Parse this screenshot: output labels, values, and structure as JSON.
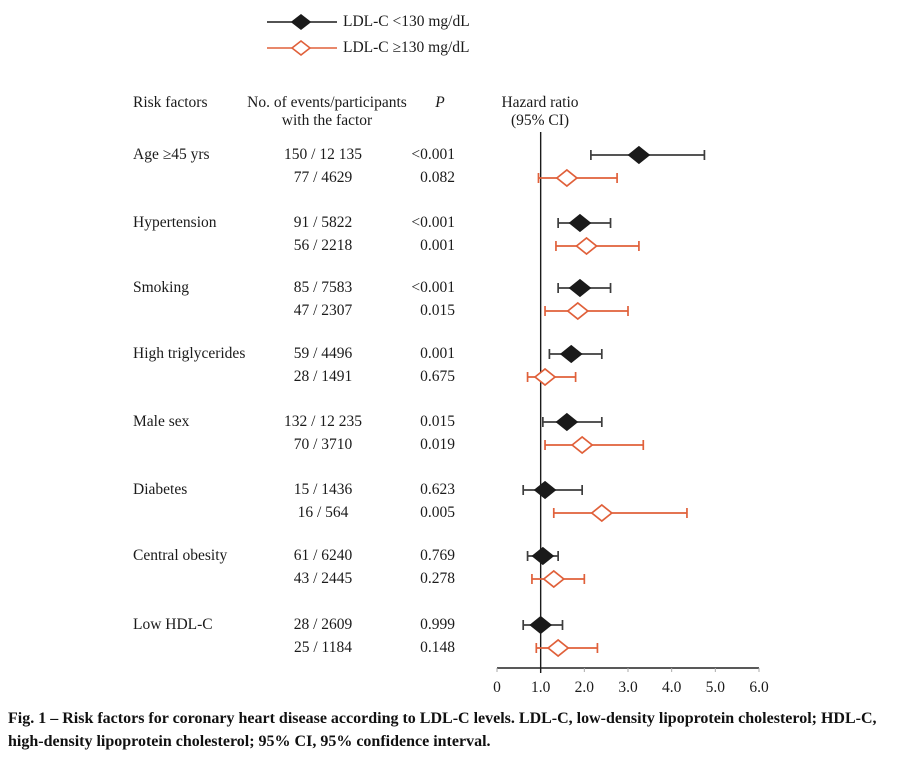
{
  "colors": {
    "series_low": "#1a1a1a",
    "series_high": "#e0603a",
    "ci_line_low": "#3d3d3d",
    "axis": "#222222",
    "text": "#1b1b1b"
  },
  "legend": {
    "items": [
      {
        "label": "LDL-C <130 mg/dL",
        "marker": "filled-diamond",
        "color": "#1a1a1a"
      },
      {
        "label": "LDL-C ≥130 mg/dL",
        "marker": "open-diamond",
        "color": "#e0603a"
      }
    ]
  },
  "table": {
    "headers": {
      "risk_factors": "Risk factors",
      "events_line1": "No. of events/participants",
      "events_line2": "with the factor",
      "p": "P",
      "hr_line1": "Hazard ratio",
      "hr_line2": "(95% CI)"
    }
  },
  "chart_data": {
    "type": "forest",
    "title": "Risk factors for coronary heart disease according to LDL-C levels",
    "xlabel": "Hazard ratio (95% CI)",
    "x_axis": {
      "tick_labels": [
        "0",
        "1.0",
        "2.0",
        "3.0",
        "4.0",
        "5.0",
        "6.0"
      ],
      "tick_values": [
        0,
        1,
        2,
        3,
        4,
        5,
        6
      ],
      "range": [
        0,
        6
      ],
      "reference_line": 1.0
    },
    "series_legend": [
      "LDL-C <130 mg/dL",
      "LDL-C ≥130 mg/dL"
    ],
    "groups": [
      {
        "factor": "Age ≥45 yrs",
        "rows": [
          {
            "series": "LDL-C <130 mg/dL",
            "events": "150 / 12 135",
            "p": "<0.001",
            "hr": 3.25,
            "ci": [
              2.15,
              4.75
            ]
          },
          {
            "series": "LDL-C ≥130 mg/dL",
            "events": "77 / 4629",
            "p": "0.082",
            "hr": 1.6,
            "ci": [
              0.95,
              2.75
            ]
          }
        ]
      },
      {
        "factor": "Hypertension",
        "rows": [
          {
            "series": "LDL-C <130 mg/dL",
            "events": "91 / 5822",
            "p": "<0.001",
            "hr": 1.9,
            "ci": [
              1.4,
              2.6
            ]
          },
          {
            "series": "LDL-C ≥130 mg/dL",
            "events": "56 / 2218",
            "p": "0.001",
            "hr": 2.05,
            "ci": [
              1.35,
              3.25
            ]
          }
        ]
      },
      {
        "factor": "Smoking",
        "rows": [
          {
            "series": "LDL-C <130 mg/dL",
            "events": "85 / 7583",
            "p": "<0.001",
            "hr": 1.9,
            "ci": [
              1.4,
              2.6
            ]
          },
          {
            "series": "LDL-C ≥130 mg/dL",
            "events": "47 / 2307",
            "p": "0.015",
            "hr": 1.85,
            "ci": [
              1.1,
              3.0
            ]
          }
        ]
      },
      {
        "factor": "High triglycerides",
        "rows": [
          {
            "series": "LDL-C <130 mg/dL",
            "events": "59 / 4496",
            "p": "0.001",
            "hr": 1.7,
            "ci": [
              1.2,
              2.4
            ]
          },
          {
            "series": "LDL-C ≥130 mg/dL",
            "events": "28 / 1491",
            "p": "0.675",
            "hr": 1.1,
            "ci": [
              0.7,
              1.8
            ]
          }
        ]
      },
      {
        "factor": "Male sex",
        "rows": [
          {
            "series": "LDL-C <130 mg/dL",
            "events": "132 / 12 235",
            "p": "0.015",
            "hr": 1.6,
            "ci": [
              1.05,
              2.4
            ]
          },
          {
            "series": "LDL-C ≥130 mg/dL",
            "events": "70 / 3710",
            "p": "0.019",
            "hr": 1.95,
            "ci": [
              1.1,
              3.35
            ]
          }
        ]
      },
      {
        "factor": "Diabetes",
        "rows": [
          {
            "series": "LDL-C <130 mg/dL",
            "events": "15 / 1436",
            "p": "0.623",
            "hr": 1.1,
            "ci": [
              0.6,
              1.95
            ]
          },
          {
            "series": "LDL-C ≥130 mg/dL",
            "events": "16 / 564",
            "p": "0.005",
            "hr": 2.4,
            "ci": [
              1.3,
              4.35
            ]
          }
        ]
      },
      {
        "factor": "Central obesity",
        "rows": [
          {
            "series": "LDL-C <130 mg/dL",
            "events": "61 / 6240",
            "p": "0.769",
            "hr": 1.05,
            "ci": [
              0.7,
              1.4
            ]
          },
          {
            "series": "LDL-C ≥130 mg/dL",
            "events": "43 / 2445",
            "p": "0.278",
            "hr": 1.3,
            "ci": [
              0.8,
              2.0
            ]
          }
        ]
      },
      {
        "factor": "Low HDL-C",
        "rows": [
          {
            "series": "LDL-C <130 mg/dL",
            "events": "28 / 2609",
            "p": "0.999",
            "hr": 1.0,
            "ci": [
              0.6,
              1.5
            ]
          },
          {
            "series": "LDL-C ≥130 mg/dL",
            "events": "25 / 1184",
            "p": "0.148",
            "hr": 1.4,
            "ci": [
              0.9,
              2.3
            ]
          }
        ]
      }
    ]
  },
  "caption": {
    "text": "Fig. 1 – Risk factors for coronary heart disease according to LDL-C levels. LDL-C, low-density lipoprotein cholesterol; HDL-C, high-density lipoprotein cholesterol; 95% CI, 95% confidence interval."
  }
}
